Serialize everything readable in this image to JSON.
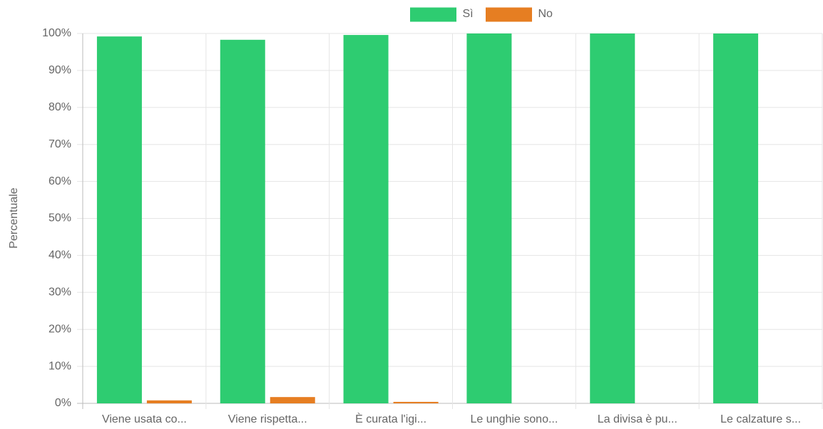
{
  "chart_data": {
    "type": "bar",
    "y_label": "Percentuale",
    "categories": [
      "Viene usata co...",
      "Viene rispetta...",
      "È curata l'igi...",
      "Le unghie sono...",
      "La divisa è pu...",
      "Le calzature s..."
    ],
    "series": [
      {
        "name": "Sì",
        "color": "#2ecc71",
        "values": [
          99.2,
          98.3,
          99.6,
          100,
          100,
          100
        ]
      },
      {
        "name": "No",
        "color": "#e67e22",
        "values": [
          0.8,
          1.7,
          0.4,
          0,
          0,
          0
        ]
      }
    ],
    "ylim": [
      0,
      100
    ],
    "yticks": [
      {
        "value": 0,
        "label": "0%"
      },
      {
        "value": 10,
        "label": "10%"
      },
      {
        "value": 20,
        "label": "20%"
      },
      {
        "value": 30,
        "label": "30%"
      },
      {
        "value": 40,
        "label": "40%"
      },
      {
        "value": 50,
        "label": "50%"
      },
      {
        "value": 60,
        "label": "60%"
      },
      {
        "value": 70,
        "label": "70%"
      },
      {
        "value": 80,
        "label": "80%"
      },
      {
        "value": 90,
        "label": "90%"
      },
      {
        "value": 100,
        "label": "100%"
      }
    ],
    "grid": true,
    "legend": "top"
  }
}
